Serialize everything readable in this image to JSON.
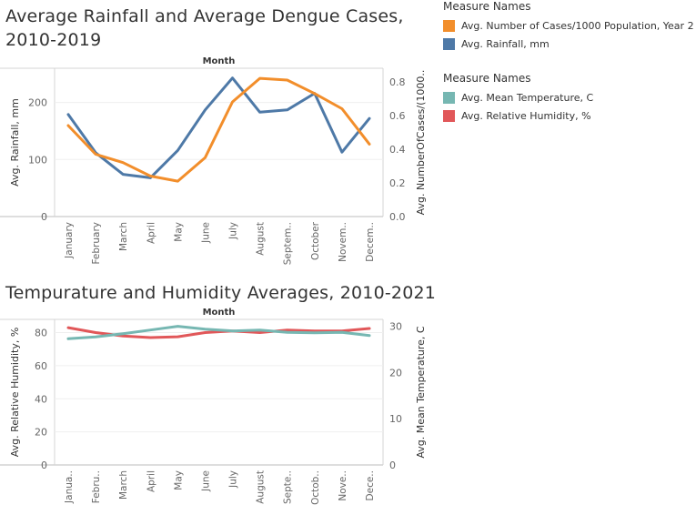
{
  "chart_data": [
    {
      "type": "line",
      "title": "Average Rainfall and Average Dengue Cases, 2010-2019",
      "title_line1": "Average Rainfall and Average Dengue Cases,",
      "title_line2": "2010-2019",
      "xlabel": "Month",
      "categories": [
        "January",
        "February",
        "March",
        "April",
        "May",
        "June",
        "July",
        "August",
        "Septem..",
        "October",
        "Novem..",
        "Decem.."
      ],
      "series": [
        {
          "name": "Avg. Rainfall,  mm",
          "axis": "left",
          "color": "#4e79a7",
          "values": [
            179,
            112,
            74,
            68,
            116,
            187,
            243,
            183,
            187,
            216,
            113,
            172
          ]
        },
        {
          "name": "Avg. Number of Cases/1000 Population, Year 2",
          "axis": "right",
          "color": "#f28e2b",
          "values": [
            0.54,
            0.37,
            0.32,
            0.24,
            0.21,
            0.35,
            0.68,
            0.82,
            0.81,
            0.73,
            0.64,
            0.43
          ]
        }
      ],
      "y_left": {
        "label": "Avg. Rainfall,  mm",
        "range": [
          0,
          260
        ],
        "ticks": [
          0,
          100,
          200
        ]
      },
      "y_right": {
        "label": "Avg. NumberOfCases/(1000..",
        "range": [
          0,
          0.88
        ],
        "ticks": [
          "0.0",
          "0.2",
          "0.4",
          "0.6",
          "0.8"
        ]
      },
      "legend": {
        "title": "Measure Names",
        "position": "top-right",
        "entries": [
          {
            "label": "Avg. Number of Cases/1000 Population, Year 2",
            "color": "#f28e2b"
          },
          {
            "label": "Avg. Rainfall,  mm",
            "color": "#4e79a7"
          }
        ]
      }
    },
    {
      "type": "line",
      "title": "Tempurature and Humidity Averages, 2010-2021",
      "xlabel": "Month",
      "categories": [
        "Janua..",
        "Febru..",
        "March",
        "April",
        "May",
        "June",
        "July",
        "August",
        "Septe..",
        "Octob..",
        "Nove..",
        "Dece.."
      ],
      "series": [
        {
          "name": "Avg. Relative Humidity, %",
          "axis": "left",
          "color": "#e15759",
          "values": [
            83,
            80,
            78,
            77,
            77.5,
            80,
            81,
            80,
            81.5,
            81,
            81,
            82.5
          ]
        },
        {
          "name": "Avg. Mean Temperature, C",
          "axis": "right",
          "color": "#76b7b2",
          "values": [
            27.3,
            27.7,
            28.4,
            29.2,
            30.0,
            29.4,
            29.0,
            29.2,
            28.7,
            28.6,
            28.7,
            28.0
          ]
        }
      ],
      "y_left": {
        "label": "Avg. Relative Humidity, %",
        "range": [
          0,
          88
        ],
        "ticks": [
          0,
          20,
          40,
          60,
          80
        ]
      },
      "y_right": {
        "label": "Avg. Mean Temperature, C",
        "range": [
          0,
          31.5
        ],
        "ticks": [
          0,
          10,
          20,
          30
        ]
      },
      "legend": {
        "title": "Measure Names",
        "position": "right",
        "entries": [
          {
            "label": "Avg. Mean Temperature, C",
            "color": "#76b7b2"
          },
          {
            "label": "Avg. Relative Humidity, %",
            "color": "#e15759"
          }
        ]
      }
    }
  ]
}
